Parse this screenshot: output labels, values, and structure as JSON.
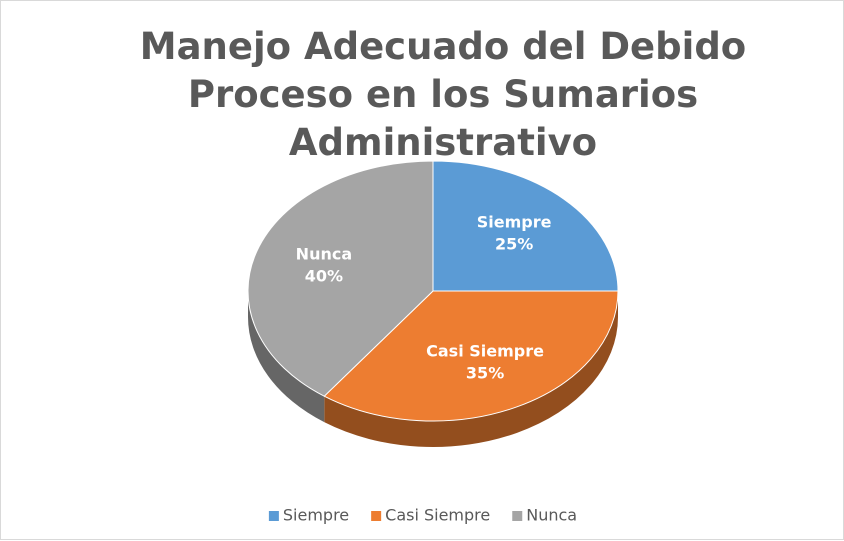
{
  "chart_data": {
    "type": "pie",
    "title": "Manejo Adecuado del Debido Proceso en los Sumarios Administrativo",
    "categories": [
      "Siempre",
      "Casi Siempre",
      "Nunca"
    ],
    "values": [
      25,
      35,
      40
    ],
    "value_labels": [
      "25%",
      "35%",
      "40%"
    ],
    "colors": [
      "#5b9bd5",
      "#ed7d31",
      "#a5a5a5"
    ],
    "legend": "bottom",
    "three_d": true
  }
}
